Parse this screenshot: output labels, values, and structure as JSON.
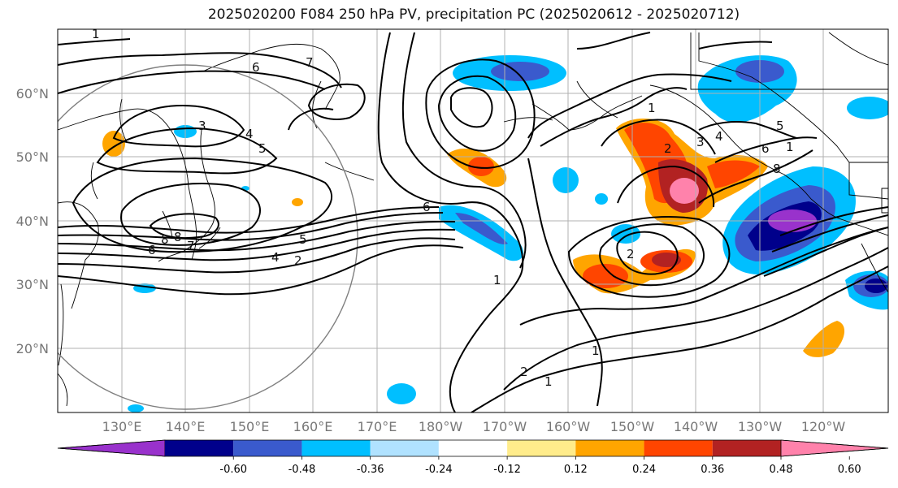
{
  "title": "2025020200 F084 250 hPa PV, precipitation PC (2025020612 - 2025020712)",
  "lat_labels": [
    "60°N",
    "50°N",
    "40°N",
    "30°N",
    "20°N"
  ],
  "lon_labels": [
    "130°E",
    "140°E",
    "150°E",
    "160°E",
    "170°E",
    "180°W",
    "170°W",
    "160°W",
    "150°W",
    "140°W",
    "130°W",
    "120°W"
  ],
  "colorbar": {
    "ticks": [
      "-0.60",
      "-0.48",
      "-0.36",
      "-0.24",
      "-0.12",
      "0.12",
      "0.24",
      "0.36",
      "0.48",
      "0.60"
    ],
    "colors": [
      "#9932cc",
      "#00008b",
      "#3a5acd",
      "#00bfff",
      "#b0e2ff",
      "#ffffff",
      "#ffec8b",
      "#ffa500",
      "#ff4500",
      "#b22222",
      "#ff82ab"
    ]
  },
  "contour_labels": [
    "1",
    "1",
    "2",
    "3",
    "4",
    "5",
    "6",
    "7",
    "8",
    "1",
    "2",
    "3",
    "4",
    "5",
    "6",
    "6",
    "7",
    "8",
    "1",
    "1",
    "2",
    "4",
    "5",
    "6",
    "8",
    "1",
    "2"
  ],
  "colors": {
    "contour": "#000000",
    "grid": "#b0b0b0",
    "coast": "#000000",
    "circle": "#808080"
  }
}
